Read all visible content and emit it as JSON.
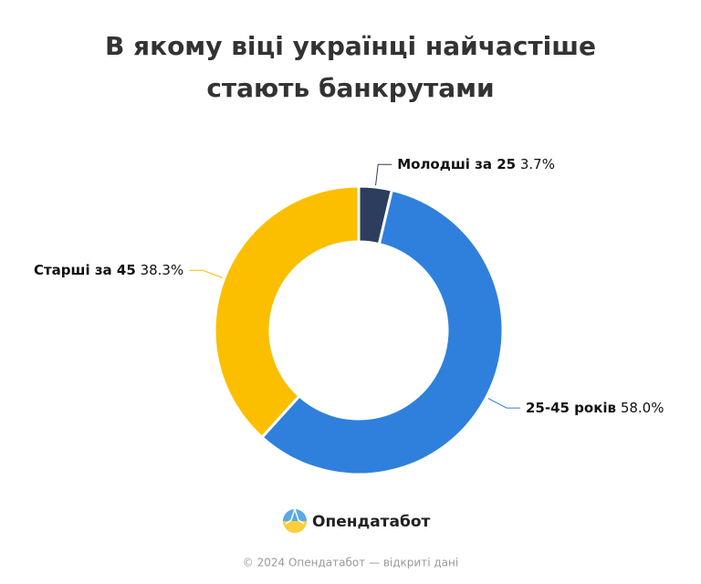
{
  "chart_data": {
    "type": "donut",
    "title": "В якому віці українці найчастіше стають банкрутами",
    "categories": [
      "Молодші за 25",
      "25-45 років",
      "Старші за 45"
    ],
    "values": [
      3.7,
      58.0,
      38.3
    ],
    "value_labels": [
      "3.7%",
      "58.0%",
      "38.3%"
    ],
    "colors": [
      "#2c3d5e",
      "#2f80dc",
      "#fbbf00"
    ]
  },
  "brand": "Опендатабот",
  "footer": "© 2024 Опендатабот — відкриті дані"
}
